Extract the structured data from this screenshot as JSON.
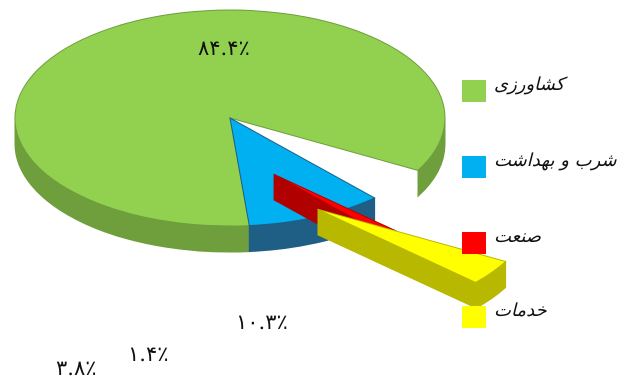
{
  "chart_data": {
    "type": "pie",
    "style": "3d-exploded",
    "title": "",
    "legend_position": "right",
    "slices": [
      {
        "label": "کشاورزی",
        "value": 84.4,
        "value_label": "۸۴.۴٪",
        "color": "#92D050",
        "side": "#6F9E3C"
      },
      {
        "label": "شرب و بهداشت",
        "value": 10.3,
        "value_label": "۱۰.۳٪",
        "color": "#00B0F0",
        "side": "#1F5F86"
      },
      {
        "label": "صنعت",
        "value": 1.4,
        "value_label": "۱.۴٪",
        "color": "#FF0000",
        "side": "#B00000"
      },
      {
        "label": "خدمات",
        "value": 3.8,
        "value_label": "۳.۸٪",
        "color": "#FFFF00",
        "side": "#B8B800"
      }
    ]
  }
}
